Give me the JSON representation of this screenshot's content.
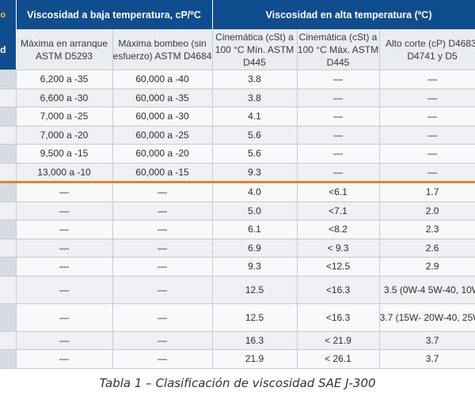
{
  "header": {
    "group_left_cut": "o",
    "group_left_cut2": "d",
    "group_low": "Viscosidad a baja temperatura, cP/ºC",
    "group_high": "Viscosidad en alta temperatura (ºC)",
    "columns": [
      "Máxima en arranque ASTM D5293",
      "Máxima bombeo (sin esfuerzo) ASTM D4684",
      "Cinemática (cSt) a 100 °C Mín. ASTM D445",
      "Cinemática (cSt) a 100 °C Máx. ASTM D445",
      "Alto corte (cP) D4683, D4741 y D5"
    ]
  },
  "rows": [
    [
      "6,200 a -35",
      "60,000 a -40",
      "3.8",
      "—",
      "—"
    ],
    [
      "6,600 a -30",
      "60,000 a -35",
      "3.8",
      "—",
      "—"
    ],
    [
      "7,000 a -25",
      "60,000 a -30",
      "4.1",
      "—",
      "—"
    ],
    [
      "7,000 a -20",
      "60,000 a -25",
      "5.6",
      "—",
      "—"
    ],
    [
      "9,500 a -15",
      "60,000 a -20",
      "5.6",
      "—",
      "—"
    ],
    [
      "13,000 a -10",
      "60,000 a -15",
      "9.3",
      "—",
      "—"
    ],
    [
      "—",
      "—",
      "4.0",
      "<6.1",
      "1.7"
    ],
    [
      "—",
      "—",
      "5.0",
      "<7.1",
      "2.0"
    ],
    [
      "—",
      "—",
      "6.1",
      "<8.2",
      "2.3"
    ],
    [
      "—",
      "—",
      "6.9",
      "< 9.3",
      "2.6"
    ],
    [
      "—",
      "—",
      "9.3",
      "<12.5",
      "2.9"
    ],
    [
      "—",
      "—",
      "12.5",
      "<16.3",
      "3.5 (0W-4 5W-40, 10W"
    ],
    [
      "—",
      "—",
      "12.5",
      "<16.3",
      "3.7 (15W- 20W-40, 25W-"
    ],
    [
      "—",
      "—",
      "16.3",
      "< 21.9",
      "3.7"
    ],
    [
      "—",
      "—",
      "21.9",
      "< 26.1",
      "3.7"
    ]
  ],
  "caption": "Tabla 1 – Clasificación de viscosidad SAE J-300"
}
